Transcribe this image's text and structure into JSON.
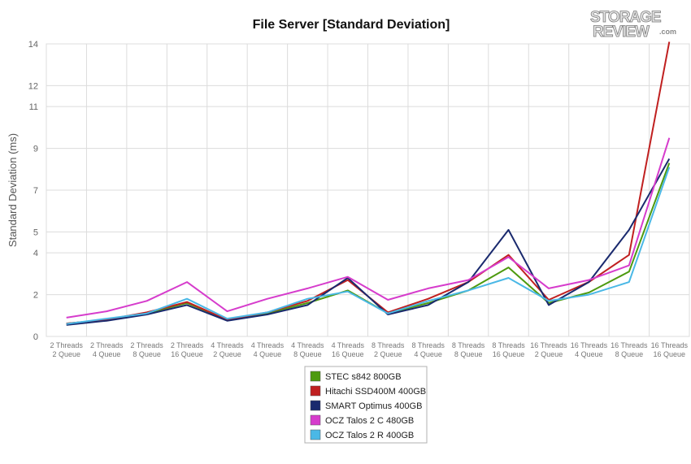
{
  "logo": {
    "line1": "STORAGE",
    "line2": "REVIEW",
    "suffix": ".com"
  },
  "chart_data": {
    "type": "line",
    "title": "File Server [Standard Deviation]",
    "ylabel": "Standard Deviation (ms)",
    "xlabel": "",
    "ylim": [
      0,
      14
    ],
    "yticks": [
      0,
      2,
      4,
      5,
      7,
      9,
      11,
      12,
      14
    ],
    "grid": true,
    "legend_position": "bottom-center",
    "categories": [
      [
        "2 Threads",
        "2 Queue"
      ],
      [
        "2 Threads",
        "4 Queue"
      ],
      [
        "2 Threads",
        "8 Queue"
      ],
      [
        "2 Threads",
        "16 Queue"
      ],
      [
        "4 Threads",
        "2 Queue"
      ],
      [
        "4 Threads",
        "4 Queue"
      ],
      [
        "4 Threads",
        "8 Queue"
      ],
      [
        "4 Threads",
        "16 Queue"
      ],
      [
        "8 Threads",
        "2 Queue"
      ],
      [
        "8 Threads",
        "4 Queue"
      ],
      [
        "8 Threads",
        "8 Queue"
      ],
      [
        "8 Threads",
        "16 Queue"
      ],
      [
        "16 Threads",
        "2 Queue"
      ],
      [
        "16 Threads",
        "4 Queue"
      ],
      [
        "16 Threads",
        "8 Queue"
      ],
      [
        "16 Threads",
        "16 Queue"
      ]
    ],
    "series": [
      {
        "name": "STEC s842 800GB",
        "color": "#4d9a0f",
        "values": [
          0.62,
          0.8,
          1.1,
          1.6,
          0.8,
          1.1,
          1.6,
          2.2,
          1.1,
          1.6,
          2.2,
          3.3,
          1.6,
          2.1,
          3.1,
          8.3
        ]
      },
      {
        "name": "Hitachi SSD400M 400GB",
        "color": "#c02020",
        "values": [
          0.62,
          0.8,
          1.15,
          1.65,
          0.8,
          1.15,
          1.7,
          2.7,
          1.15,
          1.8,
          2.6,
          3.9,
          1.75,
          2.6,
          3.9,
          14.1
        ]
      },
      {
        "name": "SMART Optimus 400GB",
        "color": "#1a2a6e",
        "values": [
          0.55,
          0.75,
          1.05,
          1.5,
          0.75,
          1.05,
          1.5,
          2.8,
          1.05,
          1.5,
          2.6,
          5.1,
          1.5,
          2.6,
          5.1,
          8.5
        ]
      },
      {
        "name": "OCZ Talos 2 C 480GB",
        "color": "#d63ccc",
        "values": [
          0.9,
          1.2,
          1.7,
          2.6,
          1.2,
          1.8,
          2.3,
          2.85,
          1.75,
          2.3,
          2.7,
          3.8,
          2.3,
          2.7,
          3.4,
          9.5
        ]
      },
      {
        "name": "OCZ Talos 2 R 400GB",
        "color": "#4ab8e6",
        "values": [
          0.6,
          0.85,
          1.1,
          1.8,
          0.85,
          1.15,
          1.8,
          2.15,
          1.1,
          1.7,
          2.2,
          2.8,
          1.7,
          2.0,
          2.6,
          8.1
        ]
      }
    ]
  }
}
